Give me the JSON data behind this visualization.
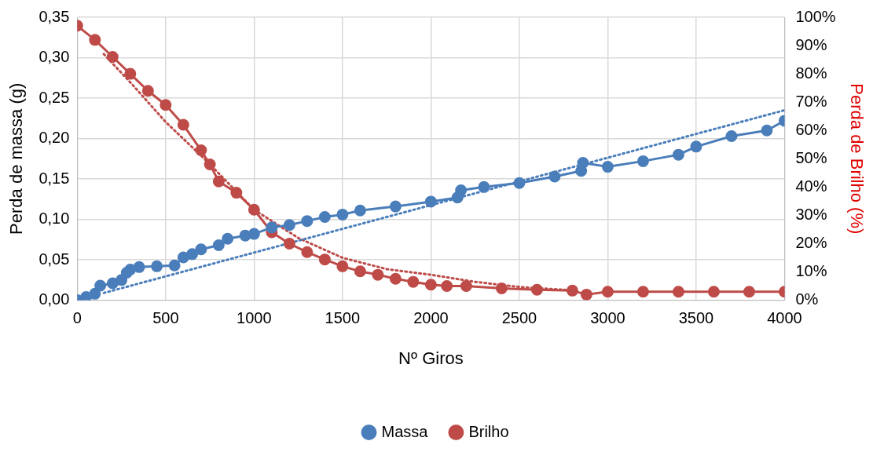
{
  "chart_data": {
    "type": "line",
    "xlabel": "Nº Giros",
    "ylabel": "Perda de massa (g)",
    "y2label": "Perda de Brilho (%)",
    "xlim": [
      0,
      4000
    ],
    "xticks": [
      0,
      500,
      1000,
      1500,
      2000,
      2500,
      3000,
      3500,
      4000
    ],
    "ylim": [
      0,
      0.35
    ],
    "yticks": [
      {
        "value": 0,
        "label": "0,00"
      },
      {
        "value": 0.05,
        "label": "0,05"
      },
      {
        "value": 0.1,
        "label": "0,10"
      },
      {
        "value": 0.15,
        "label": "0,15"
      },
      {
        "value": 0.2,
        "label": "0,20"
      },
      {
        "value": 0.25,
        "label": "0,25"
      },
      {
        "value": 0.3,
        "label": "0,30"
      },
      {
        "value": 0.35,
        "label": "0,35"
      }
    ],
    "y2lim": [
      0,
      100
    ],
    "y2ticks": [
      {
        "value": 0,
        "label": "0%"
      },
      {
        "value": 10,
        "label": "10%"
      },
      {
        "value": 20,
        "label": "20%"
      },
      {
        "value": 30,
        "label": "30%"
      },
      {
        "value": 40,
        "label": "40%"
      },
      {
        "value": 50,
        "label": "50%"
      },
      {
        "value": 60,
        "label": "60%"
      },
      {
        "value": 70,
        "label": "70%"
      },
      {
        "value": 80,
        "label": "80%"
      },
      {
        "value": 90,
        "label": "90%"
      },
      {
        "value": 100,
        "label": "100%"
      }
    ],
    "grid": true,
    "legend": "bottom",
    "marker": "circle",
    "line_style": "solid",
    "series": [
      {
        "name": "Massa",
        "color": "#4a7ebb",
        "x": [
          0,
          50,
          100,
          130,
          200,
          250,
          280,
          300,
          350,
          450,
          550,
          600,
          650,
          700,
          800,
          850,
          950,
          1000,
          1100,
          1200,
          1300,
          1400,
          1500,
          1600,
          1800,
          2000,
          2150,
          2170,
          2300,
          2500,
          2700,
          2850,
          2860,
          3000,
          3200,
          3400,
          3500,
          3700,
          3900,
          4000
        ],
        "values": [
          0,
          0.004,
          0.008,
          0.018,
          0.021,
          0.025,
          0.034,
          0.038,
          0.041,
          0.042,
          0.043,
          0.053,
          0.057,
          0.063,
          0.068,
          0.076,
          0.08,
          0.082,
          0.09,
          0.093,
          0.098,
          0.103,
          0.106,
          0.111,
          0.116,
          0.122,
          0.127,
          0.136,
          0.14,
          0.145,
          0.153,
          0.16,
          0.17,
          0.165,
          0.172,
          0.18,
          0.19,
          0.203,
          0.21,
          0.222
        ]
      },
      {
        "name": "Brilho",
        "color": "#be4b48",
        "axis": "y2",
        "x": [
          0,
          100,
          200,
          300,
          400,
          500,
          600,
          700,
          750,
          800,
          900,
          1000,
          1100,
          1200,
          1300,
          1400,
          1500,
          1600,
          1700,
          1800,
          1900,
          2000,
          2090,
          2200,
          2400,
          2600,
          2800,
          2880,
          3000,
          3200,
          3400,
          3600,
          3800,
          4000
        ],
        "values": [
          97,
          92,
          86,
          80,
          74,
          69,
          62,
          53,
          48,
          42,
          38,
          32,
          24,
          20,
          17,
          14.4,
          12,
          10.2,
          9,
          7.6,
          6.5,
          5.5,
          5,
          5,
          4.2,
          3.7,
          3.4,
          2,
          3,
          3,
          3,
          3,
          3,
          3
        ]
      },
      {
        "color": "#4a7ebb",
        "type": "line",
        "marker": "none",
        "line_style": "dotted",
        "x": [
          150,
          4000
        ],
        "values": [
          0.009,
          0.235
        ]
      },
      {
        "color": "#be4b48",
        "type": "line",
        "axis": "y2",
        "marker": "none",
        "line_style": "dotted",
        "x": [
          150,
          300,
          500,
          735,
          1000,
          1250,
          1500,
          1750,
          2000,
          2250,
          2500,
          2800
        ],
        "values": [
          87,
          77,
          63,
          49,
          32,
          22,
          15,
          11,
          9,
          6.5,
          4.7,
          3.5
        ]
      }
    ]
  }
}
